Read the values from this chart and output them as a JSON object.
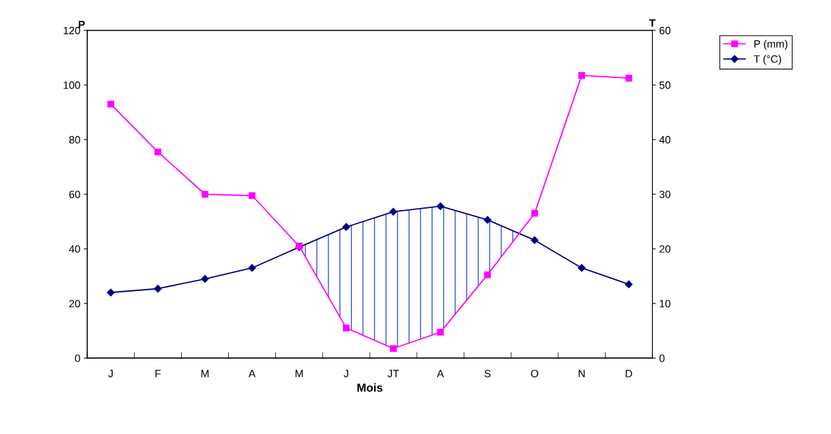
{
  "chart_data": {
    "type": "line",
    "xlabel": "Mois",
    "ylabel": "P",
    "y2label": "T",
    "categories": [
      "J",
      "F",
      "M",
      "A",
      "M",
      "J",
      "JT",
      "A",
      "S",
      "O",
      "N",
      "D"
    ],
    "series": [
      {
        "name": "P (mm)",
        "color": "#ff00ff",
        "marker": "square",
        "values": [
          93,
          75.5,
          60,
          59.5,
          41,
          11,
          3.5,
          9.5,
          30.5,
          53,
          103.5,
          102.5
        ]
      },
      {
        "name": "T (°C)",
        "color": "#000080",
        "marker": "diamond",
        "axis": "y2",
        "values": [
          12,
          12.7,
          14.5,
          16.5,
          20.3,
          24,
          26.8,
          27.8,
          25.3,
          21.6,
          16.5,
          13.5
        ]
      }
    ],
    "ylim": [
      0,
      120
    ],
    "yticks": [
      0,
      20,
      40,
      60,
      80,
      100,
      120
    ],
    "y2lim": [
      0,
      60
    ],
    "y2ticks": [
      0,
      10,
      20,
      30,
      40,
      50,
      60
    ],
    "grid": false,
    "legend": "top right",
    "line_style": "solid"
  }
}
